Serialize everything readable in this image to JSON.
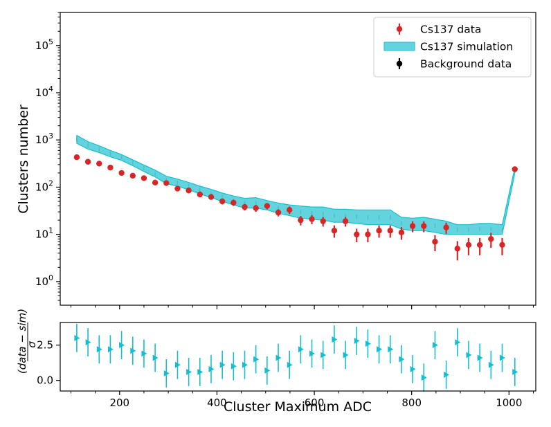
{
  "chart_data": [
    {
      "type": "scatter",
      "panel": "main",
      "yscale": "log",
      "xlim": [
        78,
        1055
      ],
      "ylim_exponents": [
        -0.5,
        5.7
      ],
      "ylabel": "Clusters number",
      "xlabel": "",
      "yticks": [
        {
          "base": "10",
          "exp": "0",
          "value": 1
        },
        {
          "base": "10",
          "exp": "1",
          "value": 10
        },
        {
          "base": "10",
          "exp": "2",
          "value": 100
        },
        {
          "base": "10",
          "exp": "3",
          "value": 1000
        },
        {
          "base": "10",
          "exp": "4",
          "value": 10000
        },
        {
          "base": "10",
          "exp": "5",
          "value": 100000
        }
      ],
      "xticks": [
        200,
        400,
        600,
        800,
        1000
      ],
      "legend": {
        "position": "top-right",
        "entries": [
          "Cs137 data",
          "Cs137 simulation",
          "Background data"
        ]
      },
      "colors": {
        "data": "#d62728",
        "simulation": "#17becf",
        "simulation_fill": "#48cdd7",
        "background": "#000000"
      },
      "x": [
        112,
        135,
        158,
        181,
        204,
        227,
        250,
        273,
        296,
        319,
        342,
        365,
        388,
        411,
        434,
        457,
        480,
        503,
        526,
        549,
        572,
        595,
        618,
        641,
        664,
        687,
        710,
        733,
        756,
        779,
        802,
        825,
        848,
        871,
        894,
        917,
        940,
        963,
        986,
        1012
      ],
      "series": [
        {
          "name": "Cs137 data",
          "values": [
            430,
            345,
            315,
            260,
            200,
            175,
            155,
            125,
            122,
            93,
            85,
            70,
            62,
            50,
            47,
            38,
            36,
            40,
            29,
            33,
            20,
            21,
            19,
            12,
            19,
            10,
            10,
            12,
            12,
            11,
            15,
            15,
            7,
            14,
            5,
            6,
            6,
            8,
            6,
            240
          ],
          "errors": [
            21,
            19,
            18,
            16,
            14,
            13,
            12,
            11,
            11,
            10,
            9,
            8,
            8,
            7,
            7,
            6,
            6,
            6,
            5,
            6,
            4.5,
            4.6,
            4.4,
            3.5,
            4.4,
            3.2,
            3.2,
            3.5,
            3.5,
            3.3,
            3.9,
            3.9,
            2.6,
            3.7,
            2.2,
            2.4,
            2.4,
            2.8,
            2.4,
            15
          ]
        },
        {
          "name": "Cs137 simulation",
          "lower": [
            850,
            640,
            540,
            440,
            370,
            285,
            215,
            165,
            118,
            105,
            88,
            72,
            60,
            50,
            42,
            36,
            36,
            33,
            28,
            25,
            22,
            21,
            20,
            18,
            18,
            17,
            16,
            16,
            16,
            13,
            12,
            12,
            11,
            10,
            10,
            10,
            10,
            10,
            10,
            200
          ],
          "upper": [
            1250,
            920,
            750,
            600,
            490,
            380,
            295,
            230,
            170,
            148,
            126,
            105,
            90,
            75,
            65,
            58,
            60,
            52,
            46,
            42,
            40,
            38,
            38,
            34,
            34,
            33,
            33,
            33,
            33,
            23,
            22,
            23,
            21,
            19,
            16,
            16,
            17,
            17,
            16,
            260
          ]
        },
        {
          "name": "Background data",
          "values": []
        }
      ]
    },
    {
      "type": "scatter",
      "panel": "ratio",
      "xlim": [
        78,
        1055
      ],
      "ylim": [
        -0.75,
        4.1
      ],
      "ylabel": "(data − sim) / σ",
      "ylabel_numerator": "(data − sim)",
      "ylabel_denominator": "σ",
      "xlabel": "Cluster Maximum ADC",
      "yticks": [
        "0.0",
        "2.5"
      ],
      "xticks": [
        "200",
        "400",
        "600",
        "800",
        "1000"
      ],
      "x": [
        112,
        135,
        158,
        181,
        204,
        227,
        250,
        273,
        296,
        319,
        342,
        365,
        388,
        411,
        434,
        457,
        480,
        503,
        526,
        549,
        572,
        595,
        618,
        641,
        664,
        687,
        710,
        733,
        756,
        779,
        802,
        825,
        848,
        871,
        894,
        917,
        940,
        963,
        986,
        1012
      ],
      "values": [
        3.0,
        2.7,
        2.2,
        2.2,
        2.5,
        2.1,
        1.9,
        1.6,
        0.5,
        1.1,
        0.6,
        0.6,
        0.8,
        1.1,
        1.0,
        1.1,
        1.5,
        0.7,
        1.6,
        1.1,
        2.2,
        1.9,
        1.8,
        2.9,
        1.8,
        2.8,
        2.6,
        2.2,
        2.2,
        1.5,
        0.8,
        0.2,
        2.5,
        0.4,
        2.7,
        1.8,
        1.6,
        1.1,
        1.6,
        0.6
      ],
      "errors": [
        1.0,
        1.0,
        1.0,
        1.0,
        1.0,
        1.0,
        1.0,
        1.0,
        1.0,
        1.0,
        1.0,
        1.0,
        1.0,
        1.0,
        1.0,
        1.0,
        1.0,
        1.0,
        1.0,
        1.0,
        1.0,
        1.0,
        1.0,
        1.0,
        1.0,
        1.0,
        1.0,
        1.0,
        1.0,
        1.0,
        1.0,
        1.0,
        1.0,
        1.0,
        1.0,
        1.0,
        1.0,
        1.0,
        1.0,
        1.0
      ]
    }
  ]
}
